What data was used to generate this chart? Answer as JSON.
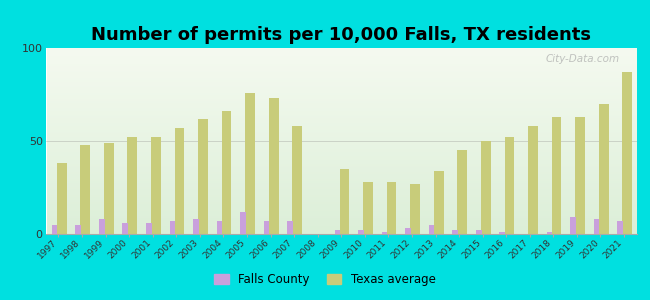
{
  "title": "Number of permits per 10,000 Falls, TX residents",
  "years": [
    1997,
    1998,
    1999,
    2000,
    2001,
    2002,
    2003,
    2004,
    2005,
    2006,
    2007,
    2008,
    2009,
    2010,
    2011,
    2012,
    2013,
    2014,
    2015,
    2016,
    2017,
    2018,
    2019,
    2020,
    2021
  ],
  "falls_county": [
    5,
    5,
    8,
    6,
    6,
    7,
    8,
    7,
    12,
    7,
    7,
    0,
    2,
    2,
    1,
    3,
    5,
    2,
    2,
    1,
    0,
    1,
    9,
    8,
    7
  ],
  "texas_avg": [
    38,
    48,
    49,
    52,
    52,
    57,
    62,
    66,
    76,
    73,
    58,
    0,
    35,
    28,
    28,
    27,
    34,
    45,
    50,
    52,
    58,
    63,
    63,
    70,
    87
  ],
  "falls_color": "#c9a0dc",
  "texas_color": "#c8cc7a",
  "background_color": "#00e0e0",
  "title_fontsize": 13,
  "ylim": [
    0,
    100
  ],
  "yticks": [
    0,
    50,
    100
  ],
  "watermark": "City-Data.com",
  "grad_top": "#f5faf0",
  "grad_bottom": "#dcefd8"
}
